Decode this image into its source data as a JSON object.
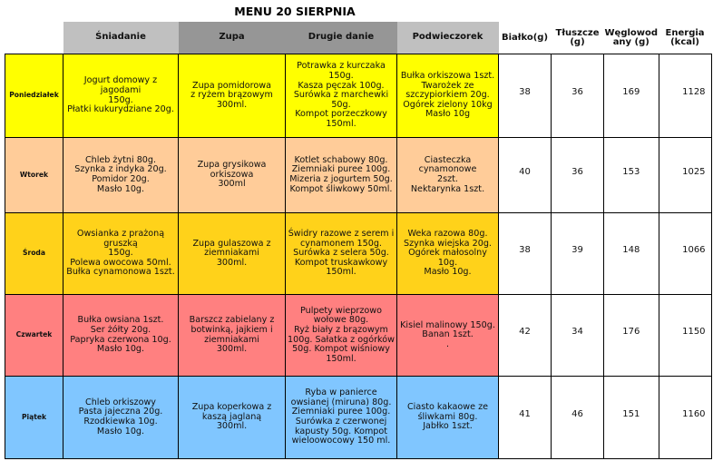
{
  "title": "MENU 20 SIERPNIA",
  "headers": [
    "",
    "Śniadanie",
    "Zupa",
    "Drugie danie",
    "Podwieczorek",
    "Białko(g)",
    "Tłuszcze\n(g)",
    "Węglowod\nany (g)",
    "Energia\n(kcal)"
  ],
  "row_colors": [
    "#ffff00",
    "#ffcc99",
    "#ffd21a",
    "#ff8080",
    "#80c6ff"
  ],
  "rows": [
    {
      "day": "Poniedziałek",
      "breakfast": "Jogurt domowy z jagodami\n150g.\nPłatki kukurydziane 20g.",
      "soup": "Zupa pomidorowa\nz ryżem brązowym\n300ml.",
      "main": "Potrawka z kurczaka 150g.\nKasza pęczak 100g.\nSurówka z marchewki 50g.\nKompot porzeczkowy\n150ml.",
      "snack": "Bułka orkiszowa 1szt.\nTwarożek ze\nszczypiorkiem 20g.\nOgórek zielony 10kg\nMasło 10g",
      "protein": "38",
      "fat": "36",
      "carbs": "169",
      "energy": "1128"
    },
    {
      "day": "Wtorek",
      "breakfast": "Chleb żytni 80g.\nSzynka z indyka 20g.\nPomidor 20g.\nMasło 10g.",
      "soup": "Zupa grysikowa orkiszowa\n300ml",
      "main": "Kotlet schabowy 80g.\nZiemniaki puree 100g.\nMizeria z jogurtem 50g.\nKompot śliwkowy 50ml.",
      "snack": "Ciasteczka cynamonowe\n2szt.\nNektarynka 1szt.",
      "protein": "40",
      "fat": "36",
      "carbs": "153",
      "energy": "1025"
    },
    {
      "day": "Środa",
      "breakfast": "Owsianka z prażoną gruszką\n150g.\nPolewa owocowa 50ml.\nBułka cynamonowa 1szt.",
      "soup": "Zupa gulaszowa z\nziemniakami\n300ml.",
      "main": "Świdry razowe z serem i\ncynamonem 150g.\nSurówka z selera 50g.\nKompot truskawkowy\n150ml.",
      "snack": "Weka razowa 80g.\nSzynka wiejska 20g.\nOgórek małosolny 10g.\nMasło 10g.",
      "protein": "38",
      "fat": "39",
      "carbs": "148",
      "energy": "1066"
    },
    {
      "day": "Czwartek",
      "breakfast": "Bułka owsiana 1szt.\nSer żółty 20g.\nPapryka czerwona 10g.\nMasło 10g.",
      "soup": "Barszcz zabielany z\nbotwinką, jajkiem i\nziemniakami\n300ml.",
      "main": "Pulpety wieprzowo\nwołowe 80g.\nRyż biały z brązowym\n100g. Sałatka z ogórków\n50g. Kompot wiśniowy\n150ml.",
      "snack": "Kisiel malinowy 150g.\nBanan 1szt.\n.",
      "protein": "42",
      "fat": "34",
      "carbs": "176",
      "energy": "1150"
    },
    {
      "day": "Piątek",
      "breakfast": "Chleb orkiszowy\nPasta jajeczna 20g.\nRzodkiewka 10g.\nMasło 10g.",
      "soup": "Zupa koperkowa z\nkaszą jaglaną\n300ml.",
      "main": "Ryba w panierce\nowsianej (miruna) 80g.\nZiemniaki puree 100g.\nSurówka z czerwonej\nkapusty 50g. Kompot\nwieloowocowy 150 ml.",
      "snack": "Ciasto kakaowe ze\nśliwkami 80g.\nJabłko 1szt.",
      "protein": "41",
      "fat": "46",
      "carbs": "151",
      "energy": "1160"
    }
  ]
}
